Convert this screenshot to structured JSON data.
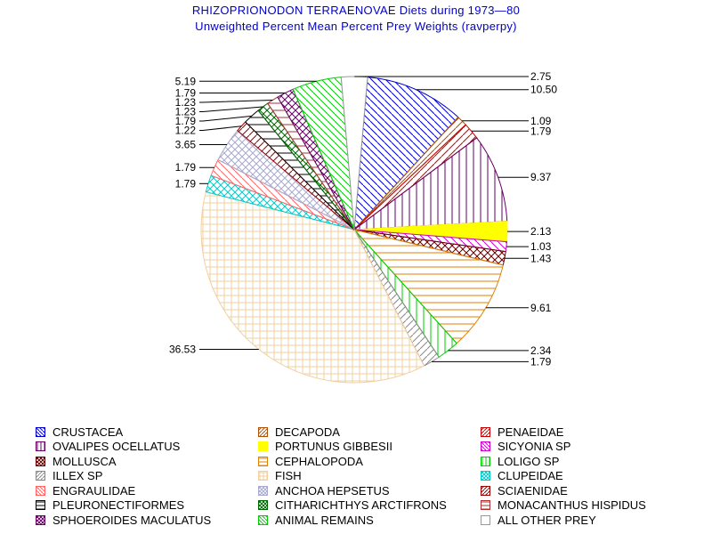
{
  "chart_data": {
    "type": "pie",
    "title": "RHIZOPRIONODON TERRAENOVAE Diets during 1973—80",
    "subtitle": "Unweighted Percent Mean Percent Prey  Weights (ravperpy)",
    "slices": [
      {
        "label": "CRUSTACEA",
        "value": 10.5,
        "value_label": "10.50",
        "color": "#0000cc",
        "pattern": "diag-left"
      },
      {
        "label": "DECAPODA",
        "value": 1.09,
        "value_label": "1.09",
        "color": "#b05000",
        "pattern": "diag-right"
      },
      {
        "label": "PENAEIDAE",
        "value": 1.79,
        "value_label": "1.79",
        "color": "#cc0000",
        "pattern": "diag-right"
      },
      {
        "label": "OVALIPES OCELLATUS",
        "value": 9.37,
        "value_label": "9.37",
        "color": "#660066",
        "pattern": "vertical"
      },
      {
        "label": "PORTUNUS GIBBESII",
        "value": 2.13,
        "value_label": "2.13",
        "color": "#ffff00",
        "pattern": "solid"
      },
      {
        "label": "SICYONIA SP",
        "value": 1.03,
        "value_label": "1.03",
        "color": "#cc00cc",
        "pattern": "diag-left"
      },
      {
        "label": "MOLLUSCA",
        "value": 1.43,
        "value_label": "1.43",
        "color": "#660000",
        "pattern": "crosshatch-x"
      },
      {
        "label": "CEPHALOPODA",
        "value": 9.61,
        "value_label": "9.61",
        "color": "#e08000",
        "pattern": "horizontal"
      },
      {
        "label": "LOLIGO SP",
        "value": 2.34,
        "value_label": "2.34",
        "color": "#00cc00",
        "pattern": "vertical"
      },
      {
        "label": "ILLEX SP",
        "value": 1.79,
        "value_label": "1.79",
        "color": "#888888",
        "pattern": "diag-right"
      },
      {
        "label": "FISH",
        "value": 36.53,
        "value_label": "36.53",
        "color": "#f0d0a0",
        "pattern": "grid"
      },
      {
        "label": "CLUPEIDAE",
        "value": 1.79,
        "value_label": "1.79",
        "color": "#00cccc",
        "pattern": "crosshatch-x"
      },
      {
        "label": "ENGRAULIDAE",
        "value": 1.79,
        "value_label": "1.79",
        "color": "#ff6666",
        "pattern": "diag-left"
      },
      {
        "label": "ANCHOA HEPSETUS",
        "value": 3.65,
        "value_label": "3.65",
        "color": "#aaaacc",
        "pattern": "crosshatch-x"
      },
      {
        "label": "SCIAENIDAE",
        "value": 1.22,
        "value_label": "1.22",
        "color": "#990000",
        "pattern": "diag-right"
      },
      {
        "label": "PLEURONECTIFORMES",
        "value": 1.79,
        "value_label": "1.79",
        "color": "#000000",
        "pattern": "horizontal"
      },
      {
        "label": "CITHARICHTHYS ARCTIFRONS",
        "value": 1.23,
        "value_label": "1.23",
        "color": "#006600",
        "pattern": "crosshatch-x"
      },
      {
        "label": "MONACANTHUS HISPIDUS",
        "value": 1.23,
        "value_label": "1.23",
        "color": "#aa3333",
        "pattern": "horizontal"
      },
      {
        "label": "SPHOEROIDES MACULATUS",
        "value": 1.79,
        "value_label": "1.79",
        "color": "#660066",
        "pattern": "crosshatch-x"
      },
      {
        "label": "ANIMAL REMAINS",
        "value": 5.19,
        "value_label": "5.19",
        "color": "#00cc00",
        "pattern": "diag-left"
      },
      {
        "label": "ALL OTHER PREY",
        "value": 2.75,
        "value_label": "2.75",
        "color": "#999999",
        "pattern": "hollow"
      }
    ]
  }
}
